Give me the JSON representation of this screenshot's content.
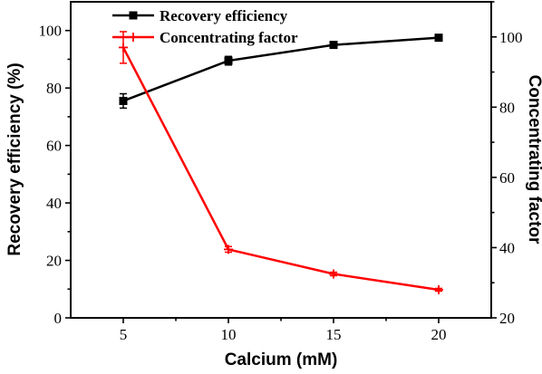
{
  "chart_data": {
    "type": "line",
    "xlabel": "Calcium (mM)",
    "ylabel_left": "Recovery efficiency (%)",
    "ylabel_right": "Concentrating factor",
    "x": [
      5,
      10,
      15,
      20
    ],
    "x_ticks": [
      5,
      10,
      15,
      20
    ],
    "xlim": [
      2.5,
      22.5
    ],
    "ylim_left": [
      0,
      110
    ],
    "ylim_right": [
      20,
      110
    ],
    "left_ticks": [
      0,
      20,
      40,
      60,
      80,
      100
    ],
    "right_ticks": [
      20,
      40,
      60,
      80,
      100
    ],
    "grid": false,
    "legend_position": "top-center",
    "series": [
      {
        "name": "Recovery efficiency",
        "axis": "left",
        "color": "#000000",
        "marker": "square",
        "values": [
          75.5,
          89.5,
          95,
          97.5
        ],
        "errors": [
          2.5,
          1.5,
          0.8,
          0.6
        ]
      },
      {
        "name": "Concentrating factor",
        "axis": "right",
        "color": "#ff0000",
        "marker": "plus",
        "values": [
          97,
          39.5,
          32.5,
          28
        ],
        "errors": [
          4.5,
          0.8,
          0.5,
          0.4
        ]
      }
    ]
  }
}
